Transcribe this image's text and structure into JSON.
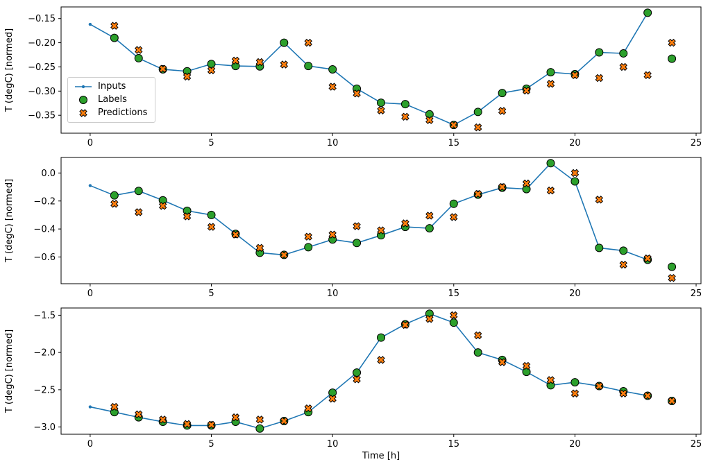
{
  "figure": {
    "background": "#ffffff",
    "xlabel": "Time [h]",
    "xlim": [
      -1.2,
      25.2
    ],
    "x_ticks": [
      0,
      5,
      10,
      15,
      20,
      25
    ],
    "x_tick_labels": [
      "0",
      "5",
      "10",
      "15",
      "20",
      "25"
    ],
    "grid": false,
    "colors": {
      "inputs": "#1f77b4",
      "labels": "#2ca02c",
      "predictions": "#ff7f0e",
      "marker_edge": "#000000",
      "frame": "#000000"
    },
    "legend": {
      "location": "center-left of top subplot",
      "items": [
        {
          "label": "Inputs",
          "marker": "line-with-dot"
        },
        {
          "label": "Labels",
          "marker": "filled-circle"
        },
        {
          "label": "Predictions",
          "marker": "filled-x"
        }
      ]
    }
  },
  "chart_data": [
    {
      "type": "line",
      "title": "",
      "xlabel": "",
      "ylabel": "T (degC) [normed]",
      "ylim": [
        -0.387,
        -0.126
      ],
      "yticks": [
        -0.15,
        -0.2,
        -0.25,
        -0.3,
        -0.35
      ],
      "ytick_labels": [
        "−0.15",
        "−0.20",
        "−0.25",
        "−0.30",
        "−0.35"
      ],
      "series": [
        {
          "name": "Inputs",
          "type": "line",
          "x": [
            0,
            1,
            2,
            3,
            4,
            5,
            6,
            7,
            8,
            9,
            10,
            11,
            12,
            13,
            14,
            15,
            16,
            17,
            18,
            19,
            20,
            21,
            22,
            23
          ],
          "values": [
            -0.162,
            -0.19,
            -0.232,
            -0.255,
            -0.259,
            -0.244,
            -0.248,
            -0.249,
            -0.2,
            -0.248,
            -0.255,
            -0.295,
            -0.324,
            -0.327,
            -0.348,
            -0.37,
            -0.343,
            -0.304,
            -0.295,
            -0.261,
            -0.265,
            -0.22,
            -0.222,
            -0.138
          ]
        },
        {
          "name": "Labels",
          "type": "scatter",
          "x": [
            1,
            2,
            3,
            4,
            5,
            6,
            7,
            8,
            9,
            10,
            11,
            12,
            13,
            14,
            15,
            16,
            17,
            18,
            19,
            20,
            21,
            22,
            23,
            24
          ],
          "values": [
            -0.19,
            -0.232,
            -0.255,
            -0.259,
            -0.244,
            -0.248,
            -0.249,
            -0.2,
            -0.248,
            -0.255,
            -0.295,
            -0.324,
            -0.327,
            -0.348,
            -0.37,
            -0.343,
            -0.304,
            -0.295,
            -0.261,
            -0.265,
            -0.22,
            -0.222,
            -0.138,
            -0.233
          ]
        },
        {
          "name": "Predictions",
          "type": "scatter",
          "x": [
            1,
            2,
            3,
            4,
            5,
            6,
            7,
            8,
            9,
            10,
            11,
            12,
            13,
            14,
            15,
            16,
            17,
            18,
            19,
            20,
            21,
            22,
            23,
            24
          ],
          "values": [
            -0.165,
            -0.215,
            -0.254,
            -0.27,
            -0.257,
            -0.237,
            -0.24,
            -0.245,
            -0.2,
            -0.291,
            -0.305,
            -0.34,
            -0.353,
            -0.36,
            -0.37,
            -0.375,
            -0.341,
            -0.299,
            -0.285,
            -0.267,
            -0.273,
            -0.25,
            -0.267,
            -0.2
          ]
        }
      ]
    },
    {
      "type": "line",
      "title": "",
      "xlabel": "",
      "ylabel": "T (degC) [normed]",
      "ylim": [
        -0.791,
        0.111
      ],
      "yticks": [
        0.0,
        -0.2,
        -0.4,
        -0.6
      ],
      "ytick_labels": [
        "0.0",
        "−0.2",
        "−0.4",
        "−0.6"
      ],
      "series": [
        {
          "name": "Inputs",
          "type": "line",
          "x": [
            0,
            1,
            2,
            3,
            4,
            5,
            6,
            7,
            8,
            9,
            10,
            11,
            12,
            13,
            14,
            15,
            16,
            17,
            18,
            19,
            20,
            21,
            22,
            23
          ],
          "values": [
            -0.09,
            -0.16,
            -0.128,
            -0.195,
            -0.27,
            -0.3,
            -0.435,
            -0.57,
            -0.585,
            -0.53,
            -0.475,
            -0.5,
            -0.445,
            -0.385,
            -0.395,
            -0.22,
            -0.155,
            -0.105,
            -0.115,
            0.07,
            -0.06,
            -0.535,
            -0.555,
            -0.62
          ]
        },
        {
          "name": "Labels",
          "type": "scatter",
          "x": [
            1,
            2,
            3,
            4,
            5,
            6,
            7,
            8,
            9,
            10,
            11,
            12,
            13,
            14,
            15,
            16,
            17,
            18,
            19,
            20,
            21,
            22,
            23,
            24
          ],
          "values": [
            -0.16,
            -0.128,
            -0.195,
            -0.27,
            -0.3,
            -0.435,
            -0.57,
            -0.585,
            -0.53,
            -0.475,
            -0.5,
            -0.445,
            -0.385,
            -0.395,
            -0.22,
            -0.155,
            -0.105,
            -0.115,
            0.07,
            -0.06,
            -0.535,
            -0.555,
            -0.62,
            -0.67
          ]
        },
        {
          "name": "Predictions",
          "type": "scatter",
          "x": [
            1,
            2,
            3,
            4,
            5,
            6,
            7,
            8,
            9,
            10,
            11,
            12,
            13,
            14,
            15,
            16,
            17,
            18,
            19,
            20,
            21,
            22,
            23,
            24
          ],
          "values": [
            -0.22,
            -0.28,
            -0.235,
            -0.31,
            -0.385,
            -0.44,
            -0.535,
            -0.585,
            -0.455,
            -0.44,
            -0.38,
            -0.41,
            -0.36,
            -0.305,
            -0.315,
            -0.15,
            -0.1,
            -0.075,
            -0.125,
            0.0,
            -0.19,
            -0.655,
            -0.61,
            -0.75
          ]
        }
      ]
    },
    {
      "type": "line",
      "title": "",
      "xlabel": "Time [h]",
      "ylabel": "T (degC) [normed]",
      "ylim": [
        -3.097,
        -1.403
      ],
      "yticks": [
        -1.5,
        -2.0,
        -2.5,
        -3.0
      ],
      "ytick_labels": [
        "−1.5",
        "−2.0",
        "−2.5",
        "−3.0"
      ],
      "series": [
        {
          "name": "Inputs",
          "type": "line",
          "x": [
            0,
            1,
            2,
            3,
            4,
            5,
            6,
            7,
            8,
            9,
            10,
            11,
            12,
            13,
            14,
            15,
            16,
            17,
            18,
            19,
            20,
            21,
            22,
            23
          ],
          "values": [
            -2.73,
            -2.8,
            -2.87,
            -2.93,
            -2.98,
            -2.98,
            -2.93,
            -3.02,
            -2.92,
            -2.8,
            -2.54,
            -2.27,
            -1.8,
            -1.62,
            -1.48,
            -1.6,
            -2.0,
            -2.1,
            -2.26,
            -2.44,
            -2.4,
            -2.45,
            -2.52,
            -2.58
          ]
        },
        {
          "name": "Labels",
          "type": "scatter",
          "x": [
            1,
            2,
            3,
            4,
            5,
            6,
            7,
            8,
            9,
            10,
            11,
            12,
            13,
            14,
            15,
            16,
            17,
            18,
            19,
            20,
            21,
            22,
            23,
            24
          ],
          "values": [
            -2.8,
            -2.87,
            -2.93,
            -2.98,
            -2.98,
            -2.93,
            -3.02,
            -2.92,
            -2.8,
            -2.54,
            -2.27,
            -1.8,
            -1.62,
            -1.48,
            -1.6,
            -2.0,
            -2.1,
            -2.26,
            -2.44,
            -2.4,
            -2.45,
            -2.52,
            -2.58,
            -2.65
          ]
        },
        {
          "name": "Predictions",
          "type": "scatter",
          "x": [
            1,
            2,
            3,
            4,
            5,
            6,
            7,
            8,
            9,
            10,
            11,
            12,
            13,
            14,
            15,
            16,
            17,
            18,
            19,
            20,
            21,
            22,
            23,
            24
          ],
          "values": [
            -2.73,
            -2.83,
            -2.9,
            -2.96,
            -2.97,
            -2.87,
            -2.9,
            -2.92,
            -2.75,
            -2.62,
            -2.36,
            -2.1,
            -1.63,
            -1.55,
            -1.5,
            -1.77,
            -2.13,
            -2.18,
            -2.37,
            -2.55,
            -2.45,
            -2.55,
            -2.58,
            -2.65
          ]
        }
      ]
    }
  ]
}
